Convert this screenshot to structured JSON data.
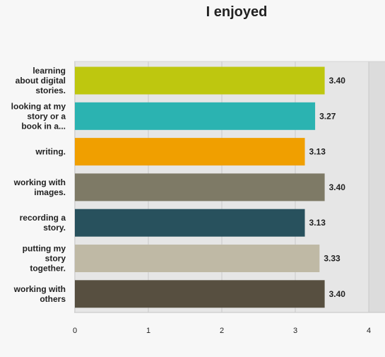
{
  "chart_data": {
    "type": "bar",
    "orientation": "horizontal",
    "title": "I enjoyed",
    "categories": [
      [
        "learning",
        "about digital",
        "stories."
      ],
      [
        "looking at my",
        "story or a",
        "book in a..."
      ],
      [
        "writing."
      ],
      [
        "working with",
        "images."
      ],
      [
        "recording a",
        "story."
      ],
      [
        "putting my",
        "story",
        "together."
      ],
      [
        "working with",
        "others"
      ]
    ],
    "values": [
      3.4,
      3.27,
      3.13,
      3.4,
      3.13,
      3.33,
      3.4
    ],
    "value_labels": [
      "3.40",
      "3.27",
      "3.13",
      "3.40",
      "3.13",
      "3.33",
      "3.40"
    ],
    "colors": [
      "#bec70f",
      "#2bb3b1",
      "#f09f00",
      "#7e7a66",
      "#28515d",
      "#bfb9a5",
      "#574f40"
    ],
    "xlim": [
      0,
      4
    ],
    "xticks": [
      "0",
      "1",
      "2",
      "3",
      "4"
    ],
    "grid": true
  }
}
